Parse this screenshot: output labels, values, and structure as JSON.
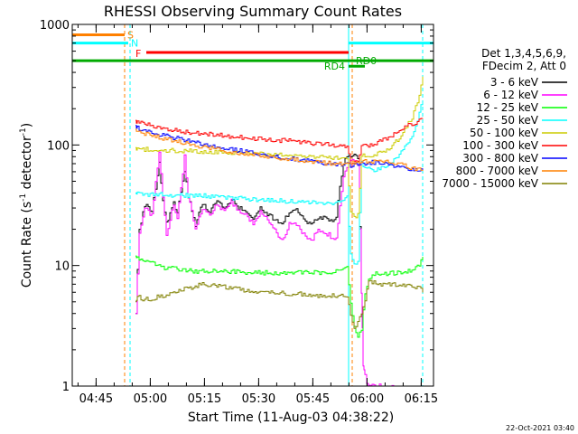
{
  "chart_data": {
    "type": "line",
    "title": "RHESSI Observing Summary Count Rates",
    "xlabel": "Start Time (11-Aug-03 04:38:22)",
    "ylabel_main": "Count Rate (s",
    "ylabel_sup1": "-1",
    "ylabel_mid": " detector",
    "ylabel_sup2": "-1",
    "ylabel_end": ")",
    "yscale": "log",
    "ylim": [
      1,
      1000
    ],
    "xlim_minutes": [
      0,
      100
    ],
    "x_ticks": [
      {
        "label": "04:45",
        "minute": 6.6
      },
      {
        "label": "05:00",
        "minute": 21.6
      },
      {
        "label": "05:15",
        "minute": 36.6
      },
      {
        "label": "05:30",
        "minute": 51.6
      },
      {
        "label": "05:45",
        "minute": 66.6
      },
      {
        "label": "06:00",
        "minute": 81.6
      },
      {
        "label": "06:15",
        "minute": 96.6
      }
    ],
    "y_ticks": [
      {
        "label": "1",
        "value": 1
      },
      {
        "label": "10",
        "value": 10
      },
      {
        "label": "100",
        "value": 100
      },
      {
        "label": "1000",
        "value": 1000
      }
    ],
    "legend_header_1": "Det 1,3,4,5,6,9,",
    "legend_header_2": "FDecim 2, Att 0",
    "series": [
      {
        "name": "3 - 6 keV",
        "color": "#000000",
        "x": [
          17.5,
          18.5,
          20,
          22,
          24,
          25,
          26,
          28,
          29,
          31,
          32,
          34,
          35,
          36,
          38,
          40,
          42,
          44,
          46,
          48,
          50,
          52,
          54,
          56,
          58,
          60,
          62,
          64,
          66,
          68,
          70,
          71,
          72,
          73,
          74,
          75,
          76.5,
          78,
          79,
          80
        ],
        "y": [
          4,
          20,
          32,
          28,
          70,
          36,
          22,
          34,
          27,
          62,
          38,
          22,
          28,
          32,
          28,
          35,
          30,
          36,
          30,
          28,
          24,
          30,
          27,
          24,
          22,
          28,
          30,
          24,
          22,
          25,
          25,
          24,
          24,
          26,
          45,
          72,
          80,
          82,
          78,
          6
        ]
      },
      {
        "name": "6 - 12 keV",
        "color": "#ff00ff",
        "x": [
          17.5,
          18.5,
          20,
          22,
          24,
          25,
          26,
          28,
          29,
          31,
          32,
          34,
          35,
          36,
          38,
          40,
          42,
          44,
          46,
          48,
          50,
          52,
          54,
          56,
          58,
          60,
          62,
          64,
          66,
          68,
          70,
          71,
          72,
          73,
          74,
          75,
          76.5,
          78,
          79,
          80,
          80.5,
          81,
          82,
          83,
          84,
          85,
          86,
          87,
          88,
          89,
          90
        ],
        "y": [
          4,
          18,
          30,
          26,
          90,
          36,
          18,
          32,
          25,
          80,
          38,
          20,
          26,
          30,
          26,
          33,
          28,
          34,
          28,
          26,
          22,
          28,
          24,
          20,
          16,
          22,
          22,
          18,
          16,
          20,
          18,
          18,
          17,
          17,
          32,
          55,
          72,
          75,
          70,
          6,
          1.5,
          1.2,
          1,
          1,
          1,
          1,
          1,
          1,
          1,
          1,
          1
        ]
      },
      {
        "name": "12 - 25 keV",
        "color": "#00ff00",
        "x": [
          17.5,
          18,
          20,
          22,
          24,
          26,
          28,
          30,
          34,
          38,
          42,
          46,
          50,
          54,
          58,
          62,
          66,
          70,
          74,
          76,
          77,
          78,
          79,
          80,
          81,
          82,
          84,
          86,
          88,
          90,
          92,
          94,
          96,
          97
        ],
        "y": [
          12,
          11.5,
          11,
          10.5,
          10,
          9.5,
          9.4,
          9.2,
          9,
          9,
          9,
          8.8,
          8.8,
          8.7,
          8.7,
          8.7,
          8.7,
          8.8,
          9,
          9.5,
          5,
          3,
          2.5,
          3,
          6,
          8,
          8.5,
          8.5,
          8.6,
          8.8,
          9,
          9,
          10,
          12
        ]
      },
      {
        "name": "25 - 50 keV",
        "color": "#00ffff",
        "x": [
          17.5,
          18,
          20,
          24,
          28,
          32,
          36,
          40,
          44,
          48,
          52,
          56,
          60,
          64,
          68,
          72,
          74,
          75,
          76,
          77,
          78,
          79,
          80,
          81,
          82,
          84,
          86,
          88,
          90,
          92,
          94,
          96,
          97
        ],
        "y": [
          40,
          40,
          39,
          39,
          38,
          38,
          38,
          37,
          36,
          36,
          35,
          35,
          34,
          34,
          33,
          33,
          34,
          36,
          38,
          12,
          10,
          11,
          70,
          66,
          64,
          62,
          66,
          70,
          82,
          95,
          120,
          180,
          240
        ]
      },
      {
        "name": "50 - 100 keV",
        "color": "#cccc00",
        "x": [
          17.5,
          18,
          20,
          24,
          28,
          32,
          36,
          40,
          44,
          48,
          52,
          56,
          60,
          64,
          68,
          72,
          76,
          77,
          78,
          79,
          80,
          81,
          82,
          84,
          86,
          88,
          90,
          92,
          94,
          96,
          97
        ],
        "y": [
          95,
          93,
          92,
          91,
          90,
          89,
          88,
          87,
          86,
          85,
          84,
          83,
          82,
          80,
          79,
          78,
          77,
          27,
          25,
          26,
          80,
          82,
          82,
          84,
          88,
          95,
          110,
          135,
          170,
          250,
          380
        ]
      },
      {
        "name": "100 - 300 keV",
        "color": "#ff0000",
        "x": [
          17.5,
          18,
          20,
          24,
          28,
          32,
          36,
          40,
          44,
          48,
          52,
          56,
          60,
          64,
          68,
          72,
          76,
          77,
          78,
          79,
          80,
          81,
          82,
          84,
          86,
          88,
          90,
          92,
          94,
          96,
          97
        ],
        "y": [
          160,
          155,
          148,
          140,
          132,
          128,
          125,
          122,
          118,
          115,
          112,
          110,
          108,
          105,
          102,
          100,
          98,
          68,
          75,
          72,
          102,
          100,
          100,
          104,
          110,
          118,
          128,
          140,
          150,
          160,
          170
        ]
      },
      {
        "name": "300 - 800 keV",
        "color": "#0000ff",
        "x": [
          17.5,
          18,
          20,
          24,
          28,
          32,
          36,
          40,
          44,
          48,
          52,
          56,
          60,
          64,
          68,
          72,
          76,
          77,
          80,
          82,
          84,
          86,
          88,
          90,
          92,
          94,
          96,
          97
        ],
        "y": [
          145,
          140,
          132,
          122,
          115,
          108,
          102,
          97,
          92,
          88,
          84,
          80,
          77,
          74,
          72,
          70,
          69,
          68,
          70,
          71,
          72,
          70,
          68,
          66,
          64,
          63,
          62,
          61
        ]
      },
      {
        "name": "800 - 7000 keV",
        "color": "#ff8000",
        "x": [
          17.5,
          18,
          20,
          24,
          28,
          32,
          36,
          40,
          44,
          48,
          52,
          56,
          60,
          64,
          68,
          72,
          76,
          80,
          82,
          84,
          86,
          88,
          90,
          92,
          94,
          96,
          97
        ],
        "y": [
          135,
          132,
          125,
          115,
          108,
          102,
          97,
          92,
          88,
          85,
          82,
          79,
          76,
          74,
          72,
          70,
          70,
          72,
          73,
          74,
          73,
          72,
          70,
          67,
          64,
          62,
          60
        ]
      },
      {
        "name": "7000 - 15000 keV",
        "color": "#808000",
        "x": [
          17.5,
          18,
          20,
          24,
          28,
          32,
          36,
          40,
          44,
          48,
          52,
          56,
          60,
          64,
          68,
          72,
          76,
          77,
          78,
          79,
          80,
          81,
          82,
          84,
          86,
          88,
          90,
          92,
          94,
          96,
          97
        ],
        "y": [
          5,
          5.5,
          5.2,
          5.5,
          6,
          6.5,
          7,
          6.8,
          6.5,
          6.2,
          6,
          6,
          5.8,
          5.8,
          5.6,
          5.6,
          5.6,
          4,
          3,
          3.5,
          4,
          5,
          7.5,
          7.2,
          7,
          7,
          6.8,
          6.8,
          6.8,
          6.5,
          6
        ]
      }
    ],
    "flag_bars": [
      {
        "label": "S",
        "color": "#ff8000",
        "level": 820,
        "start": 0,
        "end": 14.5
      },
      {
        "label": "N",
        "color": "#00ffff",
        "level": 700,
        "start": 0,
        "end": 15.5,
        "start2": 76.5,
        "end2": 100
      },
      {
        "label": "F",
        "color": "#ff0000",
        "level": 585,
        "start": 20.5,
        "end": 76.5
      },
      {
        "label": "RD0",
        "color": "#00aa00",
        "level": 500,
        "start": 0,
        "end": 100
      },
      {
        "label": "RD4",
        "color": "#00aa00",
        "level": 450,
        "start": 76.5,
        "end": 81
      }
    ],
    "vertical_markers": [
      {
        "minute": 14.5,
        "color": "#ff8000",
        "style": "dashed"
      },
      {
        "minute": 16.0,
        "color": "#00ffff",
        "style": "dashed"
      },
      {
        "minute": 76.5,
        "color": "#00ffff",
        "style": "solid"
      },
      {
        "minute": 77.5,
        "color": "#ff8000",
        "style": "dashed"
      },
      {
        "minute": 97.0,
        "color": "#00ffff",
        "style": "dashed"
      }
    ]
  },
  "footer_date": "22-Oct-2021 03:40"
}
